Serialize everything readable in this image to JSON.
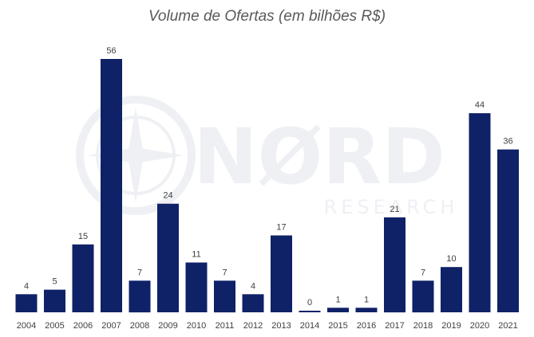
{
  "chart_data": {
    "type": "bar",
    "title": "Volume de Ofertas (em bilhões R$)",
    "categories": [
      "2004",
      "2005",
      "2006",
      "2007",
      "2008",
      "2009",
      "2010",
      "2011",
      "2012",
      "2013",
      "2014",
      "2015",
      "2016",
      "2017",
      "2018",
      "2019",
      "2020",
      "2021"
    ],
    "values": [
      4,
      5,
      15,
      56,
      7,
      24,
      11,
      7,
      4,
      17,
      0,
      1,
      1,
      21,
      7,
      10,
      44,
      36
    ],
    "xlabel": "",
    "ylabel": "",
    "ylim": [
      0,
      56
    ],
    "grid": false,
    "legend": "none",
    "bar_color": "#0f2167"
  },
  "watermark": {
    "brand": "NØRD",
    "sub": "RESEARCH",
    "color": "#eef0f4"
  }
}
